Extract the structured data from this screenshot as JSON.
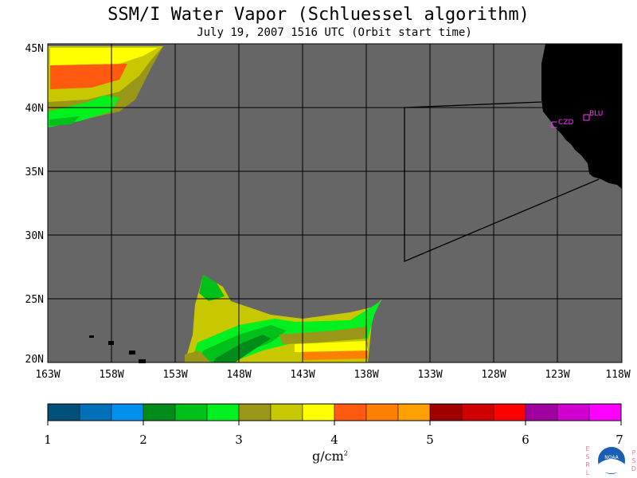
{
  "title": "SSM/I Water Vapor (Schluessel algorithm)",
  "subtitle": "July 19, 2007  1516 UTC  (Orbit start time)",
  "map": {
    "lon_range": [
      -163,
      -118
    ],
    "lat_range": [
      20,
      45
    ],
    "x_ticks": [
      "163W",
      "158W",
      "153W",
      "148W",
      "143W",
      "138W",
      "133W",
      "128W",
      "123W",
      "118W"
    ],
    "y_ticks": [
      "45N",
      "40N",
      "35N",
      "30N",
      "25N",
      "20N"
    ],
    "ocean_color": "#666666",
    "land_color": "#000000",
    "grid_color": "#000000",
    "stations": [
      {
        "id": "CZD",
        "lon": -123.0,
        "lat": 38.6
      },
      {
        "id": "BLU",
        "lon": -120.9,
        "lat": 39.3
      }
    ],
    "station_color": "#ff33ff"
  },
  "colorbar": {
    "ticks": [
      "1",
      "2",
      "3",
      "4",
      "5",
      "6",
      "7"
    ],
    "units": "g/cm",
    "units_exp": "2",
    "colors": [
      "#00507a",
      "#0070b8",
      "#0090f0",
      "#008c1a",
      "#00c01a",
      "#00f020",
      "#9a9618",
      "#c8c800",
      "#ffff00",
      "#ff5a10",
      "#ff7f00",
      "#ffa000",
      "#a00000",
      "#d00000",
      "#ff0000",
      "#a000a0",
      "#d000d0",
      "#ff00ff"
    ]
  },
  "logo": {
    "left_letters": [
      "E",
      "S",
      "R",
      "L"
    ],
    "right_letters": [
      "P",
      "S",
      "D"
    ],
    "badge": "NOAA"
  }
}
